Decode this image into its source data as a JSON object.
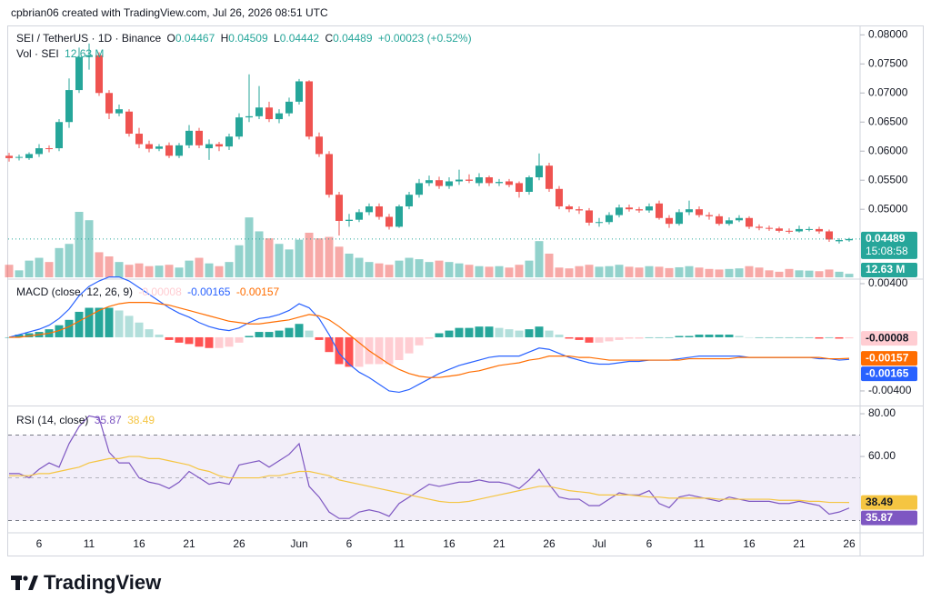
{
  "header": "cpbrian06 created with TradingView.com, Jul 26, 2026 08:51 UTC",
  "brand": "TradingView",
  "chart_data": [
    {
      "type": "candlestick",
      "title": "SEI / TetherUS · 1D · Binance",
      "ohlc_labels": [
        "O",
        "H",
        "L",
        "C"
      ],
      "change": "+0.00023 (+0.52%)",
      "countdown": "15:08:58",
      "up_color": "#26a69a",
      "down_color": "#ef5350",
      "categories": [
        null,
        null,
        null,
        "6",
        null,
        null,
        null,
        null,
        "11",
        null,
        null,
        null,
        null,
        "16",
        null,
        null,
        null,
        null,
        "21",
        null,
        null,
        null,
        null,
        "26",
        null,
        null,
        null,
        null,
        null,
        "Jun",
        null,
        null,
        null,
        null,
        "6",
        null,
        null,
        null,
        null,
        "11",
        null,
        null,
        null,
        null,
        "16",
        null,
        null,
        null,
        null,
        "21",
        null,
        null,
        null,
        null,
        "26",
        null,
        null,
        null,
        null,
        "Jul",
        null,
        null,
        null,
        null,
        "6",
        null,
        null,
        null,
        null,
        "11",
        null,
        null,
        null,
        null,
        "16",
        null,
        null,
        null,
        null,
        "21",
        null,
        null,
        null,
        null,
        "26"
      ],
      "open": [
        0.0592,
        0.0589,
        0.0588,
        0.0595,
        0.0605,
        0.0605,
        0.065,
        0.0705,
        0.0762,
        0.0765,
        0.07,
        0.0665,
        0.0668,
        0.063,
        0.0612,
        0.0604,
        0.061,
        0.0592,
        0.061,
        0.0635,
        0.0605,
        0.0612,
        0.0608,
        0.0625,
        0.0658,
        0.066,
        0.0675,
        0.0655,
        0.0665,
        0.0685,
        0.072,
        0.0625,
        0.0595,
        0.0525,
        0.048,
        0.0482,
        0.0495,
        0.0505,
        0.0487,
        0.047,
        0.0505,
        0.0525,
        0.0545,
        0.055,
        0.054,
        0.0548,
        0.0551,
        0.0545,
        0.0555,
        0.0545,
        0.0548,
        0.0545,
        0.053,
        0.0555,
        0.0575,
        0.0535,
        0.0505,
        0.05,
        0.0498,
        0.0477,
        0.0478,
        0.049,
        0.0503,
        0.05,
        0.0498,
        0.051,
        0.0485,
        0.0475,
        0.0495,
        0.05,
        0.049,
        0.0488,
        0.0475,
        0.0481,
        0.0485,
        0.047,
        0.0468,
        0.0467,
        0.0463,
        0.0462,
        0.0466,
        0.0466,
        0.0462,
        0.0445,
        0.04467
      ],
      "high": [
        0.0597,
        0.0594,
        0.0598,
        0.0612,
        0.061,
        0.0655,
        0.0725,
        0.0778,
        0.0785,
        0.077,
        0.0705,
        0.068,
        0.0672,
        0.064,
        0.0618,
        0.0612,
        0.0615,
        0.0614,
        0.0645,
        0.064,
        0.062,
        0.0616,
        0.063,
        0.0665,
        0.0732,
        0.0712,
        0.0685,
        0.0672,
        0.0692,
        0.0724,
        0.0722,
        0.0632,
        0.06,
        0.053,
        0.0492,
        0.05,
        0.051,
        0.051,
        0.0492,
        0.0508,
        0.053,
        0.0552,
        0.0558,
        0.0556,
        0.0555,
        0.0568,
        0.056,
        0.0562,
        0.0558,
        0.0552,
        0.0552,
        0.0548,
        0.0558,
        0.0596,
        0.058,
        0.054,
        0.0508,
        0.0505,
        0.0502,
        0.0485,
        0.0495,
        0.0508,
        0.0508,
        0.0504,
        0.051,
        0.0515,
        0.049,
        0.05,
        0.0515,
        0.0505,
        0.0495,
        0.0492,
        0.0486,
        0.049,
        0.0488,
        0.0474,
        0.0472,
        0.047,
        0.0467,
        0.0472,
        0.047,
        0.047,
        0.0465,
        0.045,
        0.04509
      ],
      "low": [
        0.0582,
        0.0584,
        0.0585,
        0.059,
        0.0598,
        0.06,
        0.064,
        0.07,
        0.074,
        0.0695,
        0.0655,
        0.066,
        0.0625,
        0.0605,
        0.0598,
        0.06,
        0.0588,
        0.0588,
        0.0605,
        0.0605,
        0.0585,
        0.06,
        0.0602,
        0.062,
        0.065,
        0.0655,
        0.065,
        0.0648,
        0.066,
        0.068,
        0.062,
        0.059,
        0.052,
        0.0455,
        0.047,
        0.0478,
        0.049,
        0.0482,
        0.0465,
        0.0468,
        0.05,
        0.052,
        0.054,
        0.0535,
        0.0535,
        0.0542,
        0.0545,
        0.054,
        0.054,
        0.054,
        0.0538,
        0.052,
        0.0525,
        0.055,
        0.053,
        0.05,
        0.0495,
        0.0492,
        0.0472,
        0.047,
        0.0474,
        0.0486,
        0.0496,
        0.0494,
        0.0494,
        0.0482,
        0.0468,
        0.0472,
        0.049,
        0.0486,
        0.0482,
        0.0472,
        0.0472,
        0.0478,
        0.0466,
        0.0464,
        0.0463,
        0.046,
        0.0458,
        0.046,
        0.0462,
        0.0458,
        0.0444,
        0.0441,
        0.04442
      ],
      "close": [
        0.0588,
        0.059,
        0.0595,
        0.0605,
        0.0604,
        0.065,
        0.0705,
        0.0762,
        0.0765,
        0.07,
        0.0665,
        0.0672,
        0.063,
        0.0612,
        0.0604,
        0.0608,
        0.0592,
        0.061,
        0.0635,
        0.061,
        0.0612,
        0.0608,
        0.0625,
        0.0658,
        0.066,
        0.0675,
        0.0655,
        0.0665,
        0.0685,
        0.072,
        0.0625,
        0.0595,
        0.0525,
        0.048,
        0.0482,
        0.0495,
        0.0505,
        0.0487,
        0.047,
        0.0505,
        0.0525,
        0.0545,
        0.055,
        0.054,
        0.0548,
        0.0551,
        0.0549,
        0.0555,
        0.0545,
        0.0547,
        0.0542,
        0.053,
        0.0555,
        0.0575,
        0.0535,
        0.0505,
        0.05,
        0.0498,
        0.0477,
        0.0478,
        0.049,
        0.0503,
        0.05,
        0.0498,
        0.0505,
        0.0485,
        0.0475,
        0.0495,
        0.05,
        0.049,
        0.0488,
        0.0475,
        0.0481,
        0.0485,
        0.047,
        0.0468,
        0.0467,
        0.0463,
        0.0462,
        0.0466,
        0.0466,
        0.0462,
        0.0448,
        0.0447,
        0.04489
      ],
      "volume": {
        "name": "Vol · SEI",
        "values": [
          45,
          25,
          60,
          70,
          55,
          105,
          120,
          235,
          205,
          90,
          75,
          55,
          45,
          50,
          40,
          42,
          45,
          35,
          60,
          70,
          50,
          40,
          55,
          115,
          215,
          165,
          140,
          120,
          100,
          135,
          160,
          140,
          145,
          110,
          85,
          70,
          55,
          50,
          45,
          60,
          70,
          65,
          55,
          60,
          55,
          50,
          45,
          40,
          38,
          40,
          35,
          45,
          60,
          130,
          85,
          35,
          32,
          40,
          45,
          38,
          40,
          45,
          38,
          35,
          40,
          38,
          33,
          36,
          40,
          35,
          30,
          28,
          30,
          32,
          40,
          35,
          25,
          20,
          30,
          25,
          24,
          22,
          28,
          20,
          12.63
        ],
        "value_labels": {
          "84": "12.63 M"
        }
      },
      "ylim": [
        0.0383,
        0.0813
      ],
      "yticks": [
        {
          "value": 0.08,
          "label": "0.08000"
        },
        {
          "value": 0.075,
          "label": "0.07500"
        },
        {
          "value": 0.07,
          "label": "0.07000"
        },
        {
          "value": 0.065,
          "label": "0.06500"
        },
        {
          "value": 0.06,
          "label": "0.06000"
        },
        {
          "value": 0.055,
          "label": "0.05500"
        },
        {
          "value": 0.05,
          "label": "0.05000"
        }
      ],
      "grid": false
    },
    {
      "type": "macd",
      "title": "MACD (close, 12, 26, 9)",
      "histogram": {
        "colors": [
          "#26a69a",
          "#b2dfdb",
          "#ff5252",
          "#ffcdd2"
        ],
        "values": [
          0,
          0.0002,
          0.0003,
          0.0004,
          0.0006,
          0.0009,
          0.0013,
          0.0019,
          0.0022,
          0.0022,
          0.0022,
          0.002,
          0.0016,
          0.0011,
          0.0006,
          0.0002,
          -0.0002,
          -0.0004,
          -0.0005,
          -0.0007,
          -0.0008,
          -0.0008,
          -0.0007,
          -0.0004,
          0.0001,
          0.0004,
          0.0004,
          0.0005,
          0.0007,
          0.001,
          0.0005,
          -0.0002,
          -0.0011,
          -0.002,
          -0.0022,
          -0.0022,
          -0.002,
          -0.002,
          -0.002,
          -0.0017,
          -0.0012,
          -0.0006,
          -0.0001,
          0.0003,
          0.0005,
          0.0007,
          0.0007,
          0.0008,
          0.0008,
          0.0007,
          0.0006,
          0.0005,
          0.0006,
          0.0008,
          0.0005,
          0.0002,
          -0.0001,
          -0.0002,
          -0.0004,
          -0.0004,
          -0.0003,
          -0.0002,
          -0.0001,
          -0.0001,
          0,
          0,
          0,
          0.0001,
          0.0001,
          0.0002,
          0.0002,
          0.0002,
          0.0002,
          0.0001,
          0,
          0,
          0,
          0,
          0,
          0,
          0,
          -0.0001,
          0,
          -0.0001,
          -8e-05
        ]
      },
      "series": [
        {
          "color": "#2962ff",
          "values": [
            0,
            0.0002,
            0.0004,
            0.0006,
            0.0009,
            0.0014,
            0.0021,
            0.0031,
            0.0038,
            0.0042,
            0.0045,
            0.0045,
            0.0042,
            0.0037,
            0.0032,
            0.0027,
            0.0022,
            0.0018,
            0.0015,
            0.0011,
            0.0008,
            0.0006,
            0.0005,
            0.0007,
            0.0011,
            0.0014,
            0.0015,
            0.0017,
            0.002,
            0.0025,
            0.0022,
            0.0014,
            0.0002,
            -0.0012,
            -0.002,
            -0.0026,
            -0.003,
            -0.0035,
            -0.004,
            -0.0041,
            -0.0039,
            -0.0035,
            -0.0031,
            -0.0027,
            -0.0024,
            -0.0021,
            -0.0019,
            -0.0017,
            -0.0015,
            -0.0014,
            -0.0014,
            -0.0014,
            -0.0011,
            -0.0008,
            -0.0009,
            -0.0012,
            -0.0015,
            -0.0017,
            -0.0019,
            -0.002,
            -0.002,
            -0.0019,
            -0.0018,
            -0.0018,
            -0.0017,
            -0.0017,
            -0.0017,
            -0.0016,
            -0.0015,
            -0.0014,
            -0.0014,
            -0.0014,
            -0.0014,
            -0.0014,
            -0.0015,
            -0.0015,
            -0.0015,
            -0.0015,
            -0.0015,
            -0.0015,
            -0.0015,
            -0.0016,
            -0.0016,
            -0.0017,
            -0.00165
          ]
        },
        {
          "color": "#ff6d00",
          "values": [
            0,
            0,
            0.0001,
            0.0002,
            0.0003,
            0.0005,
            0.0008,
            0.0012,
            0.0016,
            0.002,
            0.0023,
            0.0025,
            0.0026,
            0.0026,
            0.0026,
            0.0025,
            0.0024,
            0.0022,
            0.002,
            0.0018,
            0.0016,
            0.0014,
            0.0012,
            0.0011,
            0.001,
            0.001,
            0.0011,
            0.0012,
            0.0013,
            0.0015,
            0.0017,
            0.0016,
            0.0013,
            0.0008,
            0.0002,
            -0.0004,
            -0.001,
            -0.0015,
            -0.002,
            -0.0024,
            -0.0027,
            -0.0029,
            -0.003,
            -0.003,
            -0.0029,
            -0.0028,
            -0.0026,
            -0.0025,
            -0.0023,
            -0.0021,
            -0.002,
            -0.0019,
            -0.0017,
            -0.0016,
            -0.0014,
            -0.0014,
            -0.0014,
            -0.0015,
            -0.0015,
            -0.0016,
            -0.0017,
            -0.0017,
            -0.0017,
            -0.0017,
            -0.0017,
            -0.0017,
            -0.0017,
            -0.0017,
            -0.0016,
            -0.0016,
            -0.0016,
            -0.0016,
            -0.0016,
            -0.0015,
            -0.0015,
            -0.0015,
            -0.0015,
            -0.0015,
            -0.0015,
            -0.0015,
            -0.0015,
            -0.0015,
            -0.0016,
            -0.0016,
            -0.00157
          ]
        }
      ],
      "ylim": [
        -0.00502,
        0.00427
      ],
      "yticks": [
        {
          "value": 0.004,
          "label": "0.00400"
        },
        {
          "value": -0.004,
          "label": "-0.00400"
        }
      ]
    },
    {
      "type": "rsi",
      "title": "RSI (14, close)",
      "series": [
        {
          "color": "#7e57c2",
          "values": [
            52,
            52,
            50,
            54,
            57,
            55,
            66,
            74,
            79,
            78,
            62,
            57,
            57,
            50,
            48,
            47,
            45,
            48,
            53,
            50,
            47,
            48,
            47,
            56,
            57,
            58,
            55,
            58,
            61,
            66,
            46,
            41,
            34,
            31,
            31,
            34,
            35,
            34,
            32,
            38,
            41,
            44,
            47,
            46,
            47,
            48,
            48,
            49,
            48,
            48,
            47,
            45,
            49,
            54,
            47,
            41,
            40,
            40,
            37,
            37,
            40,
            43,
            42,
            42,
            44,
            38,
            36,
            41,
            42,
            41,
            40,
            39,
            41,
            40,
            39,
            39,
            39,
            38,
            38,
            39,
            38,
            37,
            33,
            34,
            35.87
          ]
        },
        {
          "color": "#f5c542",
          "values": [
            51,
            51,
            51,
            52,
            52,
            53,
            54,
            55,
            57,
            58,
            59,
            59,
            60,
            60,
            59,
            59,
            58,
            57,
            56,
            54,
            53,
            51,
            50,
            50,
            50,
            50,
            51,
            51,
            52,
            53,
            53,
            52,
            51,
            49,
            48,
            47,
            46,
            45,
            44,
            43,
            42,
            41,
            40,
            39,
            38.5,
            38.5,
            39,
            40,
            41,
            42,
            43,
            44,
            45,
            46,
            46,
            45,
            44,
            43.5,
            43,
            42,
            42,
            42,
            42,
            41.5,
            41,
            41,
            40.5,
            40.5,
            40.5,
            40.5,
            40.5,
            40,
            40,
            40,
            40,
            40,
            40,
            39.5,
            39.5,
            39.5,
            39,
            39,
            38.5,
            38.5,
            38.49
          ]
        }
      ],
      "bands": [
        70,
        50,
        30
      ],
      "band_fill": "#ede7f6",
      "ylim": [
        24.7,
        83
      ],
      "yticks": [
        {
          "value": 80,
          "label": "80.00"
        },
        {
          "value": 60,
          "label": "60.00"
        }
      ]
    }
  ]
}
